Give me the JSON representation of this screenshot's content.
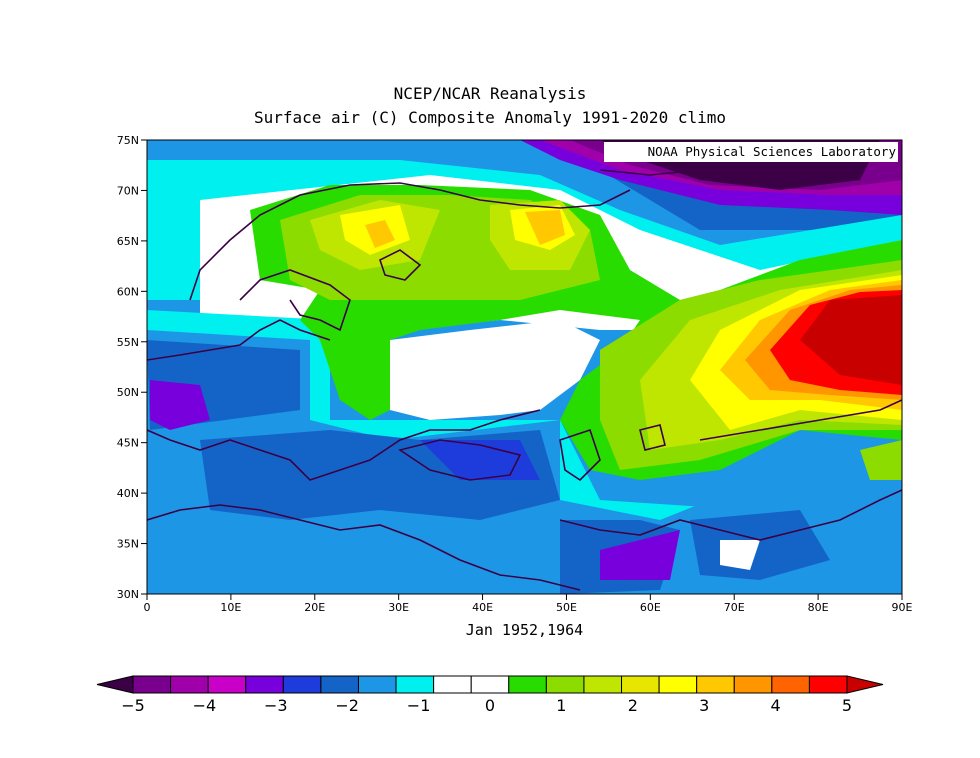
{
  "title": "NCEP/NCAR Reanalysis",
  "subtitle": "Surface air (C) Composite Anomaly 1991-2020 climo",
  "credit": "NOAA Physical Sciences Laboratory",
  "period_label": "Jan 1952,1964",
  "lat_labels": [
    "75N",
    "70N",
    "65N",
    "60N",
    "55N",
    "50N",
    "45N",
    "40N",
    "35N",
    "30N"
  ],
  "lon_labels": [
    "0",
    "10E",
    "20E",
    "30E",
    "40E",
    "50E",
    "60E",
    "70E",
    "80E",
    "90E"
  ],
  "colorbar": {
    "labels": [
      "-5",
      "-4",
      "-3",
      "-2",
      "-1",
      "0",
      "1",
      "2",
      "3",
      "4",
      "5"
    ],
    "colors": [
      "#3c0046",
      "#78008c",
      "#a000aa",
      "#c800c8",
      "#7800dc",
      "#1e3cdc",
      "#1464c8",
      "#1e96e6",
      "#00f0f0",
      "#ffffff",
      "#ffffff",
      "#28dc00",
      "#8cdc00",
      "#bee600",
      "#e6e600",
      "#ffff00",
      "#ffc800",
      "#ff9600",
      "#ff6400",
      "#ff0000",
      "#c80000"
    ]
  }
}
